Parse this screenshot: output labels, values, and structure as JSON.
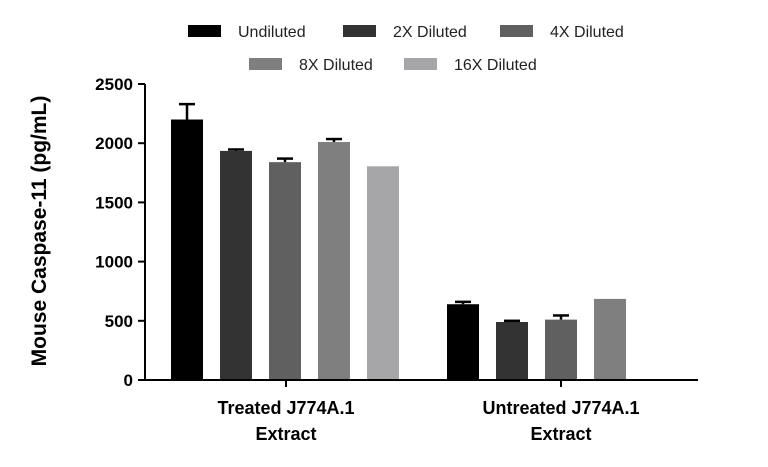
{
  "chart_data": {
    "type": "bar",
    "ylabel": "Mouse Caspase-11 (pg/mL)",
    "xlabel": "",
    "ylim": [
      0,
      2500
    ],
    "yticks": [
      "0",
      "500",
      "1000",
      "1500",
      "2000",
      "2500"
    ],
    "categories": [
      {
        "line1": "Treated J774A.1",
        "line2": "Extract"
      },
      {
        "line1": "Untreated J774A.1",
        "line2": "Extract"
      }
    ],
    "series": [
      {
        "name": "Undiluted",
        "color": "#000000",
        "values": [
          2200,
          640
        ],
        "errors": [
          130,
          20
        ]
      },
      {
        "name": "2X Diluted",
        "color": "#333333",
        "values": [
          1935,
          490
        ],
        "errors": [
          12,
          10
        ]
      },
      {
        "name": "4X Diluted",
        "color": "#606060",
        "values": [
          1840,
          510
        ],
        "errors": [
          30,
          35
        ]
      },
      {
        "name": "8X Diluted",
        "color": "#7f7f7f",
        "values": [
          2010,
          685
        ],
        "errors": [
          25,
          0
        ]
      },
      {
        "name": "16X Diluted",
        "color": "#a6a6a8",
        "values": [
          1805,
          null
        ],
        "errors": [
          0,
          null
        ]
      }
    ],
    "legend_position": "top"
  }
}
